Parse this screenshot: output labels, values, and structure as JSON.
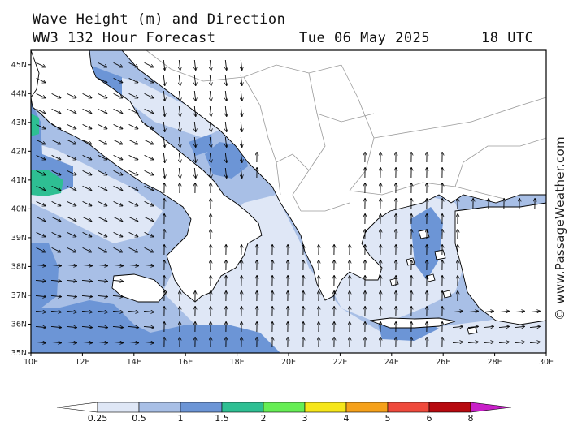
{
  "header": {
    "line1": "Wave Height (m) and Direction",
    "line2_left": "WW3 132 Hour Forecast",
    "date": "Tue 06 May 2025",
    "time": "18 UTC"
  },
  "credit": "© www.PassageWeather.com",
  "map": {
    "lon_ticks": [
      "10E",
      "12E",
      "14E",
      "16E",
      "18E",
      "20E",
      "22E",
      "24E",
      "26E",
      "28E",
      "30E"
    ],
    "lat_ticks": [
      "45N",
      "44N",
      "43N",
      "42N",
      "41N",
      "40N",
      "39N",
      "38N",
      "37N",
      "36N",
      "35N"
    ],
    "lon_range": [
      10,
      30
    ],
    "lat_range": [
      35,
      45.5
    ],
    "wave_direction": "arrows point mostly north (from south) in Ionian and Aegean; southeast in Adriatic and Tyrrhenian"
  },
  "colorbar": {
    "labels": [
      "0.25",
      "0.5",
      "1",
      "1.5",
      "2",
      "3",
      "4",
      "5",
      "6",
      "8"
    ],
    "colors": [
      "#ffffff",
      "#dfe7f6",
      "#a8bfe6",
      "#6c95d6",
      "#2ebf93",
      "#66ee55",
      "#f6e61a",
      "#f5a11b",
      "#ef4a3c",
      "#b7090f",
      "#c81fc8"
    ]
  },
  "colors": {
    "land": "#ffffff",
    "sea_025": "#dfe7f6",
    "sea_05": "#a8bfe6",
    "sea_1": "#6c95d6",
    "sea_15": "#2ebf93",
    "border": "#999999",
    "coast": "#000000"
  }
}
